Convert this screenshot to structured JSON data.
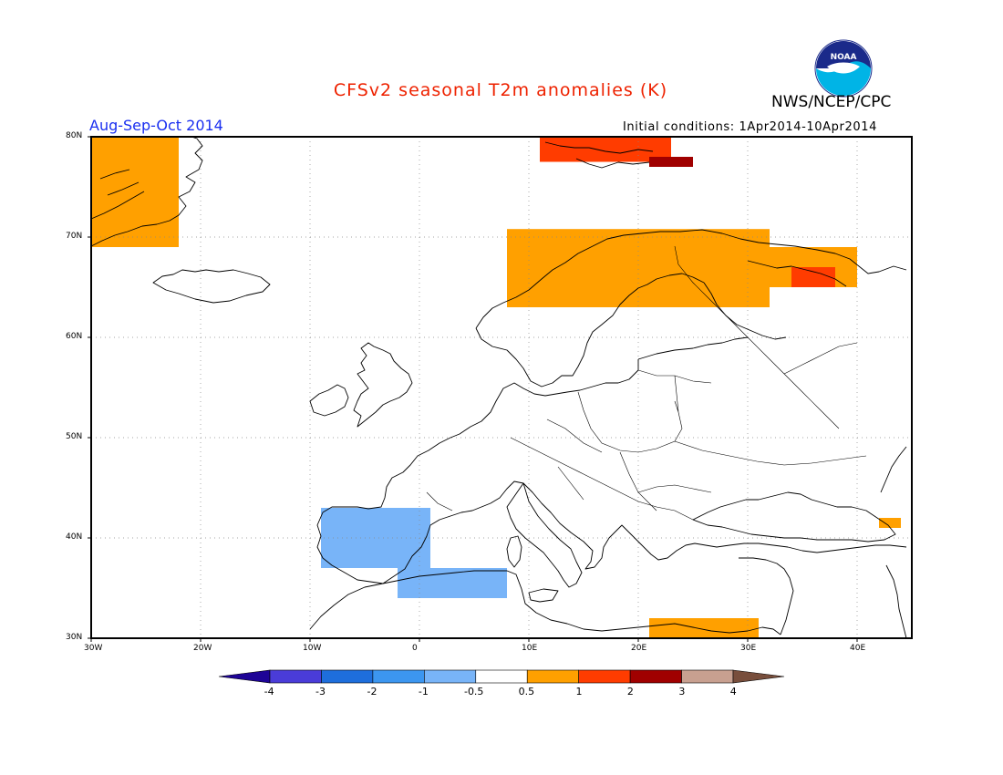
{
  "title": "CFSv2 seasonal T2m anomalies (K)",
  "org": "NWS/NCEP/CPC",
  "logo_text": "NOAA",
  "season": "Aug-Sep-Oct 2014",
  "init_conditions": "Initial conditions: 1Apr2014-10Apr2014",
  "lat_labels": [
    "80N",
    "70N",
    "60N",
    "50N",
    "40N",
    "30N"
  ],
  "lon_labels": [
    "30W",
    "20W",
    "10W",
    "0",
    "10E",
    "20E",
    "30E",
    "40E"
  ],
  "colorbar": {
    "labels": [
      "-4",
      "-3",
      "-2",
      "-1",
      "-0.5",
      "0.5",
      "1",
      "2",
      "3",
      "4"
    ],
    "colors": [
      "#1e0496",
      "#4a3cd8",
      "#1e6edc",
      "#3c96f0",
      "#78b4f8",
      "#ffffff",
      "#ffa000",
      "#ff3c00",
      "#a00000",
      "#c8a090",
      "#784e3c"
    ]
  },
  "colors": {
    "land": "#ffffff",
    "coast": "#000000",
    "grid": "#888888"
  },
  "chart_data": {
    "type": "heatmap",
    "title": "CFSv2 seasonal T2m anomalies (K)",
    "variable": "T2m anomaly (K)",
    "lon_range": [
      -30,
      45
    ],
    "lat_range": [
      30,
      80
    ],
    "regions": [
      {
        "area": "Greenland east coast",
        "lon": [
          -30,
          -22
        ],
        "lat": [
          69,
          80
        ],
        "anomaly_class": "0.5 to 1"
      },
      {
        "area": "Svalbard",
        "lon": [
          11,
          23
        ],
        "lat": [
          77.5,
          80
        ],
        "anomaly_class": "1 to 2"
      },
      {
        "area": "Svalbard east",
        "lon": [
          21,
          25
        ],
        "lat": [
          77,
          78
        ],
        "anomaly_class": "2 to 3"
      },
      {
        "area": "Northern Scandinavia coast",
        "lon": [
          8,
          32
        ],
        "lat": [
          63,
          70.8
        ],
        "anomaly_class": "0.5 to 1"
      },
      {
        "area": "Kola / White Sea",
        "lon": [
          31,
          40
        ],
        "lat": [
          65,
          69
        ],
        "anomaly_class": "0.5 to 1"
      },
      {
        "area": "Kola interior",
        "lon": [
          34,
          38
        ],
        "lat": [
          65,
          67
        ],
        "anomaly_class": "1 to 2"
      },
      {
        "area": "Iberian Peninsula",
        "lon": [
          -9,
          1
        ],
        "lat": [
          37,
          43
        ],
        "anomaly_class": "-1 to -0.5"
      },
      {
        "area": "Northwest Africa",
        "lon": [
          -2,
          8
        ],
        "lat": [
          34,
          37
        ],
        "anomaly_class": "-1 to -0.5"
      },
      {
        "area": "Libya / Egypt coast",
        "lon": [
          21,
          31
        ],
        "lat": [
          30,
          32
        ],
        "anomaly_class": "0.5 to 1"
      },
      {
        "area": "Eastern Black Sea",
        "lon": [
          42,
          44
        ],
        "lat": [
          41,
          42
        ],
        "anomaly_class": "0.5 to 1"
      }
    ]
  }
}
